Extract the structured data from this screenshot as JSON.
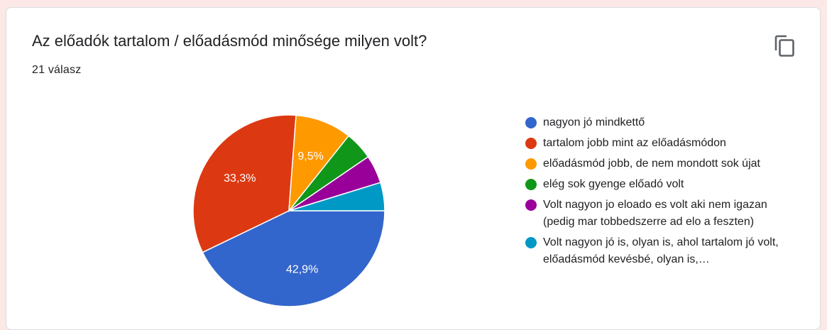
{
  "card": {
    "title": "Az előadók tartalom / előadásmód minősége milyen volt?",
    "response_count": "21 válasz",
    "copy_icon": "copy-icon"
  },
  "chart_data": {
    "type": "pie",
    "total_responses": 21,
    "slices": [
      {
        "name": "nagyon jó mindkettő",
        "value": 9,
        "percent": 42.9,
        "label": "42,9%",
        "color": "#3366cc"
      },
      {
        "name": "tartalom jobb mint az előadásmódon",
        "value": 7,
        "percent": 33.3,
        "label": "33,3%",
        "color": "#dc3912"
      },
      {
        "name": "előadásmód jobb, de nem mondott sok újat",
        "value": 2,
        "percent": 9.5,
        "label": "9,5%",
        "color": "#ff9900"
      },
      {
        "name": "elég sok gyenge előadó volt",
        "value": 1,
        "percent": 4.8,
        "label": "",
        "color": "#109618"
      },
      {
        "name": "Volt nagyon jo eloado es volt aki nem igazan (pedig mar tobbedszerre ad elo a feszten)",
        "value": 1,
        "percent": 4.8,
        "label": "",
        "color": "#990099"
      },
      {
        "name": "Volt nagyon jó is, olyan is, ahol tartalom jó volt, előadásmód kevésbé, olyan is,…",
        "value": 1,
        "percent": 4.8,
        "label": "",
        "color": "#0099c6"
      }
    ],
    "legend_position": "right"
  }
}
